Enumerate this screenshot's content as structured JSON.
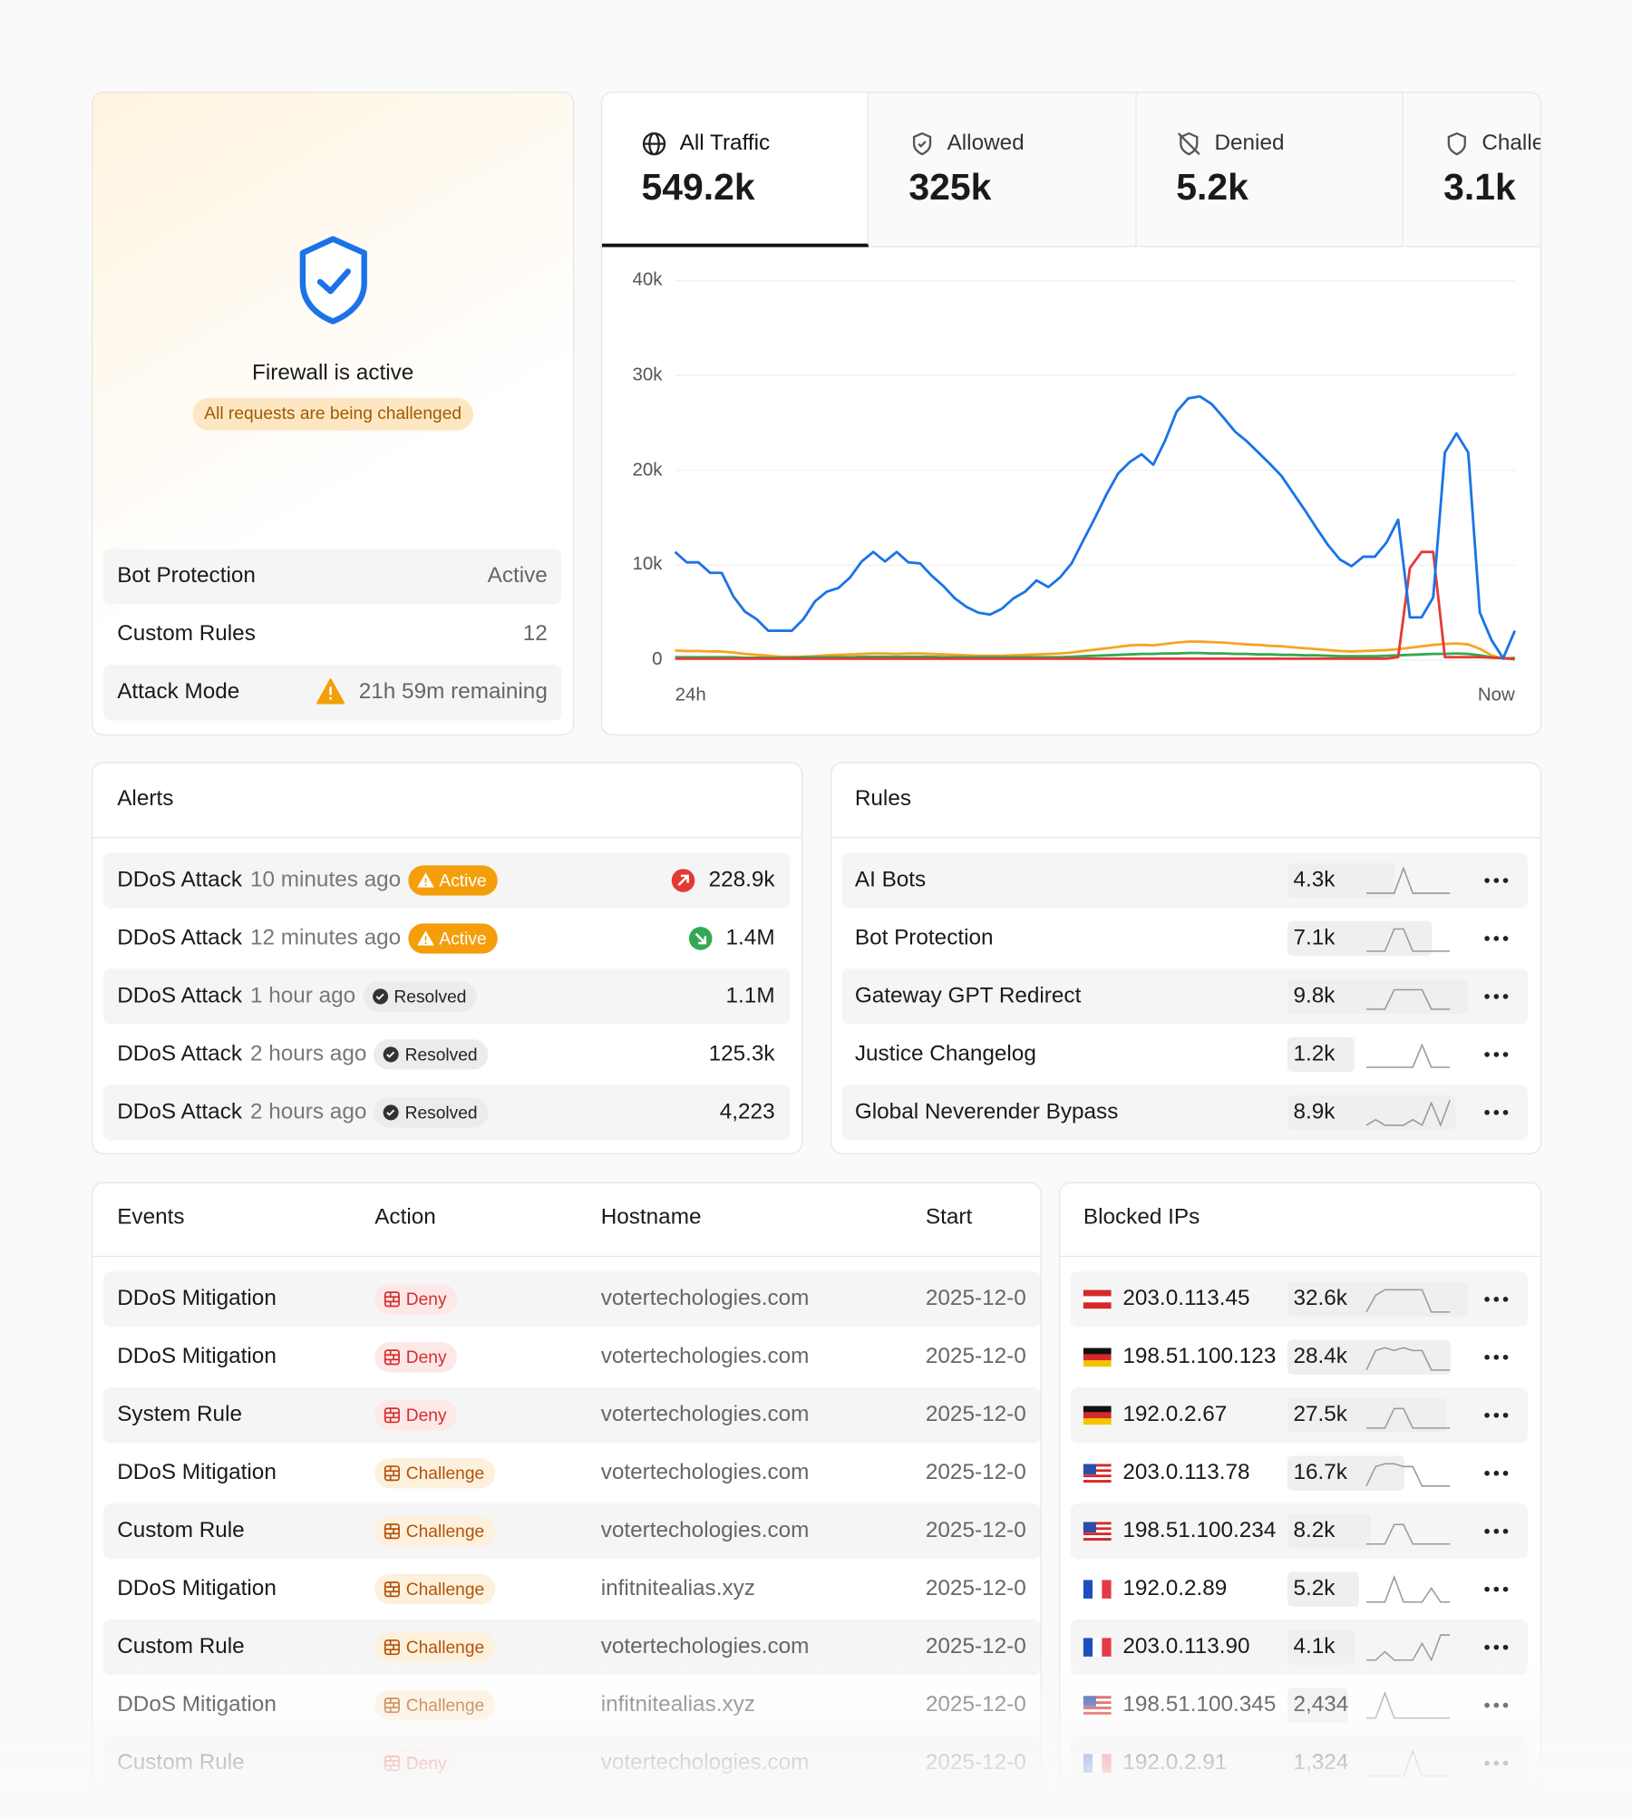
{
  "firewall": {
    "status": "Firewall is active",
    "badge": "All requests are being challenged",
    "settings": [
      {
        "label": "Bot Protection",
        "value": "Active"
      },
      {
        "label": "Custom Rules",
        "value": "12"
      },
      {
        "label": "Attack Mode",
        "value": "21h 59m remaining",
        "warning": true
      }
    ]
  },
  "traffic_tabs": [
    {
      "label": "All Traffic",
      "value": "549.2k",
      "active": true
    },
    {
      "label": "Allowed",
      "value": "325k"
    },
    {
      "label": "Denied",
      "value": "5.2k"
    },
    {
      "label": "Challenged",
      "value": "3.1k"
    }
  ],
  "traffic_chart": {
    "type": "line",
    "ylim": [
      0,
      40000
    ],
    "yticks": [
      0,
      {
        "value": 10000,
        "label": "10k"
      },
      {
        "value": 20000,
        "label": "20k"
      },
      {
        "value": 30000,
        "label": "30k"
      },
      {
        "value": 40000,
        "label": "40k"
      }
    ],
    "x_labels": [
      "24h",
      "Now"
    ],
    "series": [
      {
        "color": "#f5a623",
        "values": [
          1000,
          950,
          950,
          900,
          900,
          800,
          650,
          550,
          450,
          350,
          350,
          350,
          400,
          500,
          550,
          600,
          650,
          700,
          700,
          650,
          700,
          700,
          650,
          600,
          550,
          500,
          450,
          450,
          450,
          500,
          550,
          600,
          650,
          700,
          800,
          950,
          1100,
          1250,
          1400,
          1550,
          1600,
          1550,
          1700,
          1850,
          1950,
          1950,
          1900,
          1850,
          1750,
          1650,
          1600,
          1500,
          1450,
          1350,
          1250,
          1150,
          1050,
          950,
          900,
          950,
          1000,
          1050,
          1150,
          1300,
          1450,
          1600,
          1700,
          1750,
          1650,
          1200,
          500,
          150,
          250
        ]
      },
      {
        "color": "#34a853",
        "values": [
          300,
          300,
          300,
          300,
          300,
          300,
          250,
          250,
          250,
          250,
          250,
          300,
          300,
          300,
          300,
          300,
          350,
          350,
          350,
          350,
          350,
          350,
          350,
          300,
          300,
          300,
          300,
          300,
          300,
          300,
          300,
          300,
          300,
          300,
          350,
          400,
          450,
          500,
          550,
          600,
          650,
          650,
          700,
          700,
          750,
          750,
          700,
          700,
          650,
          650,
          600,
          600,
          550,
          550,
          500,
          500,
          450,
          400,
          400,
          400,
          400,
          450,
          500,
          550,
          600,
          650,
          650,
          700,
          650,
          500,
          300,
          200,
          200
        ]
      },
      {
        "color": "#e53935",
        "values": [
          150,
          150,
          150,
          150,
          150,
          150,
          150,
          150,
          150,
          150,
          150,
          150,
          150,
          150,
          150,
          150,
          150,
          150,
          150,
          150,
          150,
          150,
          150,
          150,
          150,
          150,
          150,
          150,
          150,
          150,
          150,
          150,
          150,
          150,
          150,
          150,
          150,
          150,
          150,
          150,
          150,
          150,
          150,
          150,
          150,
          150,
          150,
          150,
          150,
          150,
          150,
          150,
          150,
          150,
          150,
          150,
          150,
          150,
          150,
          150,
          150,
          150,
          300,
          9700,
          11400,
          11400,
          300,
          300,
          300,
          300,
          250,
          200,
          100
        ]
      },
      {
        "color": "#1a73e8",
        "values": [
          11400,
          10300,
          10300,
          9200,
          9200,
          6700,
          5100,
          4300,
          3100,
          3100,
          3100,
          4300,
          6200,
          7200,
          7600,
          8700,
          10400,
          11400,
          10400,
          11400,
          10300,
          10200,
          8900,
          7800,
          6500,
          5600,
          5000,
          4800,
          5400,
          6500,
          7200,
          8400,
          7700,
          8700,
          10200,
          12600,
          15000,
          17500,
          19700,
          20900,
          21700,
          20600,
          23100,
          26200,
          27600,
          27800,
          27000,
          25600,
          24100,
          23100,
          21900,
          20700,
          19400,
          17600,
          15800,
          13900,
          12100,
          10600,
          9900,
          10900,
          10900,
          12400,
          14800,
          4500,
          4500,
          6600,
          21900,
          23900,
          21900,
          5000,
          2100,
          200,
          3100
        ]
      }
    ]
  },
  "alerts": {
    "title": "Alerts",
    "rows": [
      {
        "name": "DDoS Attack",
        "time": "10 minutes ago",
        "status": "Active",
        "trend": "up",
        "value": "228.9k"
      },
      {
        "name": "DDoS Attack",
        "time": "12 minutes ago",
        "status": "Active",
        "trend": "down",
        "value": "1.4M"
      },
      {
        "name": "DDoS Attack",
        "time": "1 hour ago",
        "status": "Resolved",
        "value": "1.1M"
      },
      {
        "name": "DDoS Attack",
        "time": "2 hours ago",
        "status": "Resolved",
        "value": "125.3k"
      },
      {
        "name": "DDoS Attack",
        "time": "2 hours ago",
        "status": "Resolved",
        "value": "4,223"
      }
    ]
  },
  "rules": {
    "title": "Rules",
    "rows": [
      {
        "name": "AI Bots",
        "count": 4300,
        "count_label": "4.3k",
        "spark": [
          0,
          0,
          0,
          0,
          9,
          0,
          0,
          0,
          0,
          0
        ]
      },
      {
        "name": "Bot Protection",
        "count": 7100,
        "count_label": "7.1k",
        "spark": [
          0,
          0,
          0,
          8,
          8,
          0,
          0,
          0,
          0,
          0
        ]
      },
      {
        "name": "Gateway GPT Redirect",
        "count": 9800,
        "count_label": "9.8k",
        "spark": [
          0,
          0,
          0,
          7,
          7,
          7,
          7,
          0,
          0,
          0
        ]
      },
      {
        "name": "Justice Changelog",
        "count": 1200,
        "count_label": "1.2k",
        "spark": [
          0,
          0,
          0,
          0,
          0,
          0,
          8,
          0,
          0,
          0
        ]
      },
      {
        "name": "Global Neverender Bypass",
        "count": 8900,
        "count_label": "8.9k",
        "spark": [
          0,
          2,
          0,
          0,
          0,
          2,
          0,
          8,
          0,
          9
        ]
      }
    ]
  },
  "events": {
    "columns": [
      "Events",
      "Action",
      "Hostname",
      "Start"
    ],
    "rows": [
      [
        "DDoS Mitigation",
        "Deny",
        "votertechologies.com",
        "2025-12-0"
      ],
      [
        "DDoS Mitigation",
        "Deny",
        "votertechologies.com",
        "2025-12-0"
      ],
      [
        "System Rule",
        "Deny",
        "votertechologies.com",
        "2025-12-0"
      ],
      [
        "DDoS Mitigation",
        "Challenge",
        "votertechologies.com",
        "2025-12-0"
      ],
      [
        "Custom Rule",
        "Challenge",
        "votertechologies.com",
        "2025-12-0"
      ],
      [
        "DDoS Mitigation",
        "Challenge",
        "infitnitealias.xyz",
        "2025-12-0"
      ],
      [
        "Custom Rule",
        "Challenge",
        "votertechologies.com",
        "2025-12-0"
      ],
      [
        "DDoS Mitigation",
        "Challenge",
        "infitnitealias.xyz",
        "2025-12-0"
      ],
      [
        "Custom Rule",
        "Deny",
        "votertechologies.com",
        "2025-12-0"
      ]
    ]
  },
  "blocked_ips": {
    "title": "Blocked IPs",
    "rows": [
      {
        "flag": "AT",
        "ip": "203.0.113.45",
        "count": 32600,
        "count_label": "32.6k",
        "spark": [
          0,
          6,
          8,
          8,
          8,
          8,
          8,
          0,
          0,
          0
        ]
      },
      {
        "flag": "DE",
        "ip": "198.51.100.123",
        "count": 28400,
        "count_label": "28.4k",
        "spark": [
          0,
          7,
          8,
          7,
          8,
          7,
          7,
          0,
          0,
          0
        ]
      },
      {
        "flag": "DE",
        "ip": "192.0.2.67",
        "count": 27500,
        "count_label": "27.5k",
        "spark": [
          0,
          0,
          0,
          7,
          7,
          0,
          0,
          0,
          0,
          0
        ]
      },
      {
        "flag": "US",
        "ip": "203.0.113.78",
        "count": 16700,
        "count_label": "16.7k",
        "spark": [
          0,
          7,
          8,
          8,
          7,
          7,
          0,
          0,
          0,
          0
        ]
      },
      {
        "flag": "US",
        "ip": "198.51.100.234",
        "count": 8200,
        "count_label": "8.2k",
        "spark": [
          0,
          0,
          0,
          7,
          7,
          0,
          0,
          0,
          0,
          0
        ]
      },
      {
        "flag": "FR",
        "ip": "192.0.2.89",
        "count": 5200,
        "count_label": "5.2k",
        "spark": [
          0,
          0,
          0,
          9,
          0,
          0,
          0,
          5,
          0,
          0
        ]
      },
      {
        "flag": "FR",
        "ip": "203.0.113.90",
        "count": 4100,
        "count_label": "4.1k",
        "spark": [
          0,
          0,
          3,
          0,
          0,
          0,
          6,
          0,
          9,
          9
        ]
      },
      {
        "flag": "US",
        "ip": "198.51.100.345",
        "count": 2434,
        "count_label": "2,434",
        "spark": [
          0,
          0,
          9,
          0,
          0,
          0,
          0,
          0,
          0,
          0
        ]
      },
      {
        "flag": "FR",
        "ip": "192.0.2.91",
        "count": 1324,
        "count_label": "1,324",
        "spark": [
          0,
          0,
          0,
          0,
          0,
          9,
          0,
          0,
          0,
          0
        ]
      }
    ]
  }
}
